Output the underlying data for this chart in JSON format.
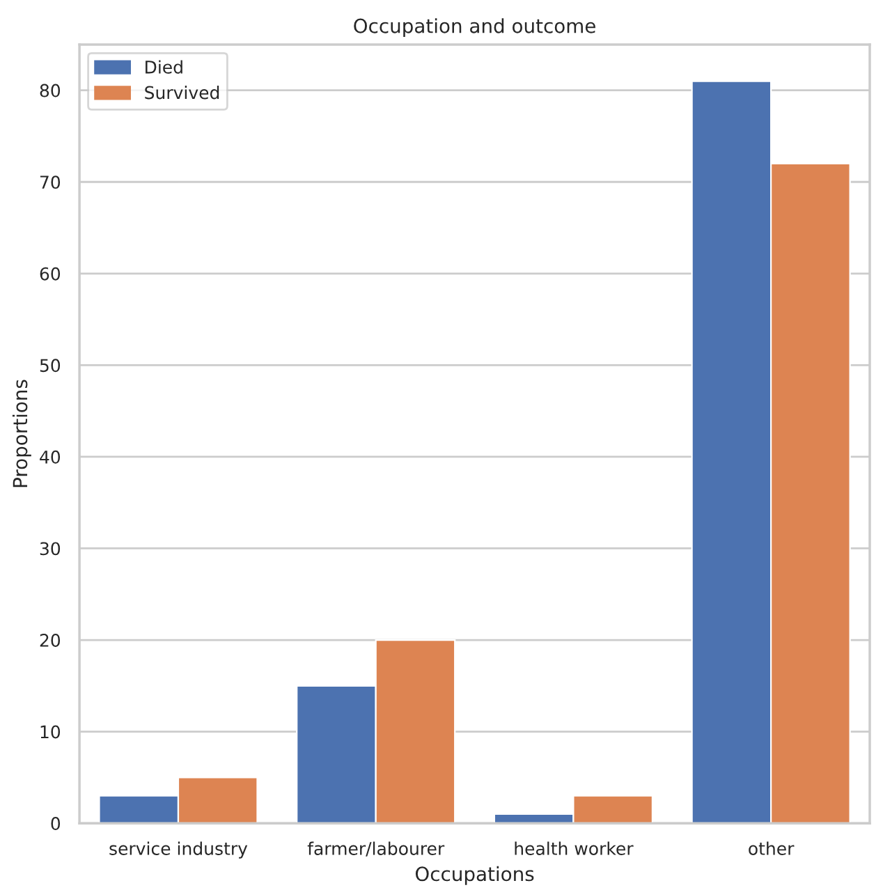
{
  "chart_data": {
    "type": "bar",
    "title": "Occupation and outcome",
    "xlabel": "Occupations",
    "ylabel": "Proportions",
    "categories": [
      "service industry",
      "farmer/labourer",
      "health worker",
      "other"
    ],
    "series": [
      {
        "name": "Died",
        "color": "#4c72b0",
        "values": [
          3,
          15,
          1,
          81
        ]
      },
      {
        "name": "Survived",
        "color": "#dd8452",
        "values": [
          5,
          20,
          3,
          72
        ]
      }
    ],
    "ylim": [
      0,
      85
    ],
    "yticks": [
      0,
      10,
      20,
      30,
      40,
      50,
      60,
      70,
      80
    ],
    "grid": "y",
    "legend": "top left"
  }
}
